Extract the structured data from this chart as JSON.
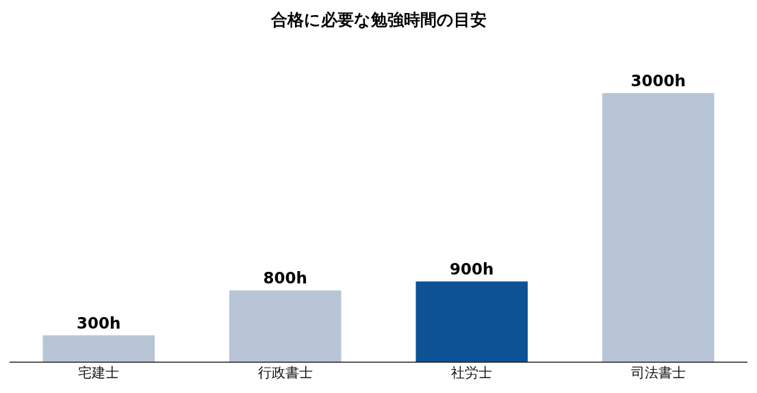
{
  "chart_data": {
    "type": "bar",
    "title": "合格に必要な勉強時間の目安",
    "categories": [
      "宅建士",
      "行政書士",
      "社労士",
      "司法書士"
    ],
    "values": [
      300,
      800,
      900,
      3000
    ],
    "colors": [
      "#b8c5d6",
      "#b8c5d6",
      "#0d5294",
      "#b8c5d6"
    ],
    "value_labels": [
      "300h",
      "800h",
      "900h",
      "3000h"
    ]
  }
}
